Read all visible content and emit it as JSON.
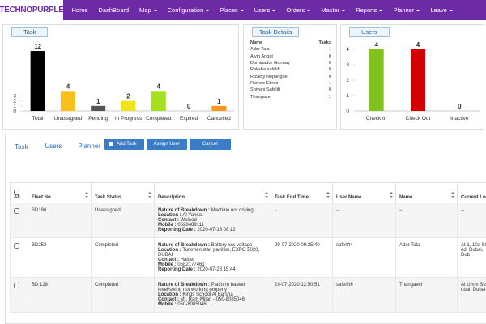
{
  "nav": {
    "logo": "TECHNOPURPLE",
    "items": [
      "Home",
      "DashBoard",
      "Map",
      "Configuration",
      "Places",
      "Users",
      "Orders",
      "Master",
      "Reports",
      "Planner",
      "Leave"
    ],
    "dropdown": [
      false,
      false,
      true,
      true,
      true,
      true,
      true,
      true,
      true,
      true,
      true
    ]
  },
  "chart_data": [
    {
      "type": "bar",
      "title": "Task",
      "categories": [
        "Total",
        "Unassigned",
        "Pending",
        "In Progress",
        "Completed",
        "Expired",
        "Cancelled"
      ],
      "values": [
        12,
        4,
        1,
        2,
        4,
        0,
        1
      ],
      "colors": [
        "#000000",
        "#f9c01c",
        "#555555",
        "#f2e41a",
        "#a4e01e",
        "#cccccc",
        "#f79a1e"
      ],
      "ylim": [
        0,
        12
      ],
      "yticks": [
        0,
        1,
        2,
        3
      ],
      "grid": false
    },
    {
      "type": "bar",
      "title": "Users",
      "categories": [
        "Check In",
        "Check Out",
        "Inactive"
      ],
      "values": [
        4,
        4,
        0
      ],
      "colors": [
        "#7fc31c",
        "#d40000",
        "#888888"
      ],
      "ylim": [
        0,
        4
      ],
      "yticks": [
        0,
        1,
        2,
        3,
        4
      ],
      "grid": false
    }
  ],
  "task_details": {
    "title": "Task Details",
    "columns": [
      "Name",
      "Tasks"
    ],
    "rows": [
      [
        "Ador Tala",
        "1"
      ],
      [
        "Alvin Angat",
        "0"
      ],
      [
        "Dominador Garmay",
        "0"
      ],
      [
        "Raksha safelift",
        "0"
      ],
      [
        "Rizaldy Nepangue",
        "0"
      ],
      [
        "Romeo Ebreo",
        "1"
      ],
      [
        "Shivani Safelift",
        "0"
      ],
      [
        "Thangavel",
        "1"
      ]
    ]
  },
  "tabs": [
    "Task",
    "Users",
    "Planner"
  ],
  "buttons": [
    "Add Task",
    "Assign User",
    "Cancel"
  ],
  "table": {
    "columns": [
      "All",
      "Fleet No.",
      "Task Status",
      "Description",
      "Task End Time",
      "User Name",
      "Name",
      "Current Loc"
    ],
    "rows": [
      {
        "fleet": "SD186",
        "status": "Unassigned",
        "desc": [
          [
            "Nature of Breakdown :",
            "Machine not driving"
          ],
          [
            "Location :",
            "Al Yahsat"
          ],
          [
            "Contact :",
            "Waleed"
          ],
          [
            "Mobile :",
            "0528489111"
          ],
          [
            "Reporting Date :",
            "2020-07-18 08:12"
          ]
        ],
        "end": "-",
        "user": "--",
        "name": "--",
        "loc": "--"
      },
      {
        "fleet": "BD253",
        "status": "Completed",
        "desc": [
          [
            "Nature of Breakdown :",
            "Battery low voltage"
          ],
          [
            "Location :",
            "Turkmenistan pavilion, EXPO 2020, DUBAI"
          ],
          [
            "Contact :",
            "Haider"
          ],
          [
            "Mobile :",
            "0582177461"
          ],
          [
            "Reporting Date :",
            "2020-07-28 15:44"
          ]
        ],
        "end": "29-07-2020 09:25:40",
        "user": "safelift4",
        "name": "Ador Tala",
        "loc": "At 1, 10a Str ed, Dubai, Dub"
      },
      {
        "fleet": "BD 128",
        "status": "Completed",
        "desc": [
          [
            "Nature of Breakdown :",
            "Platform basket level/swing not working properly"
          ],
          [
            "Location :",
            "Kings School Al Barsha"
          ],
          [
            "Contact :",
            "Mr. Ram Milan - 050-8085046"
          ],
          [
            "Mobile :",
            "050-8085046"
          ]
        ],
        "end": "29-07-2020 12:50:51",
        "user": "safelift6",
        "name": "Thangavel",
        "loc": "At Umm Sug ubai, Dubai U"
      }
    ]
  }
}
